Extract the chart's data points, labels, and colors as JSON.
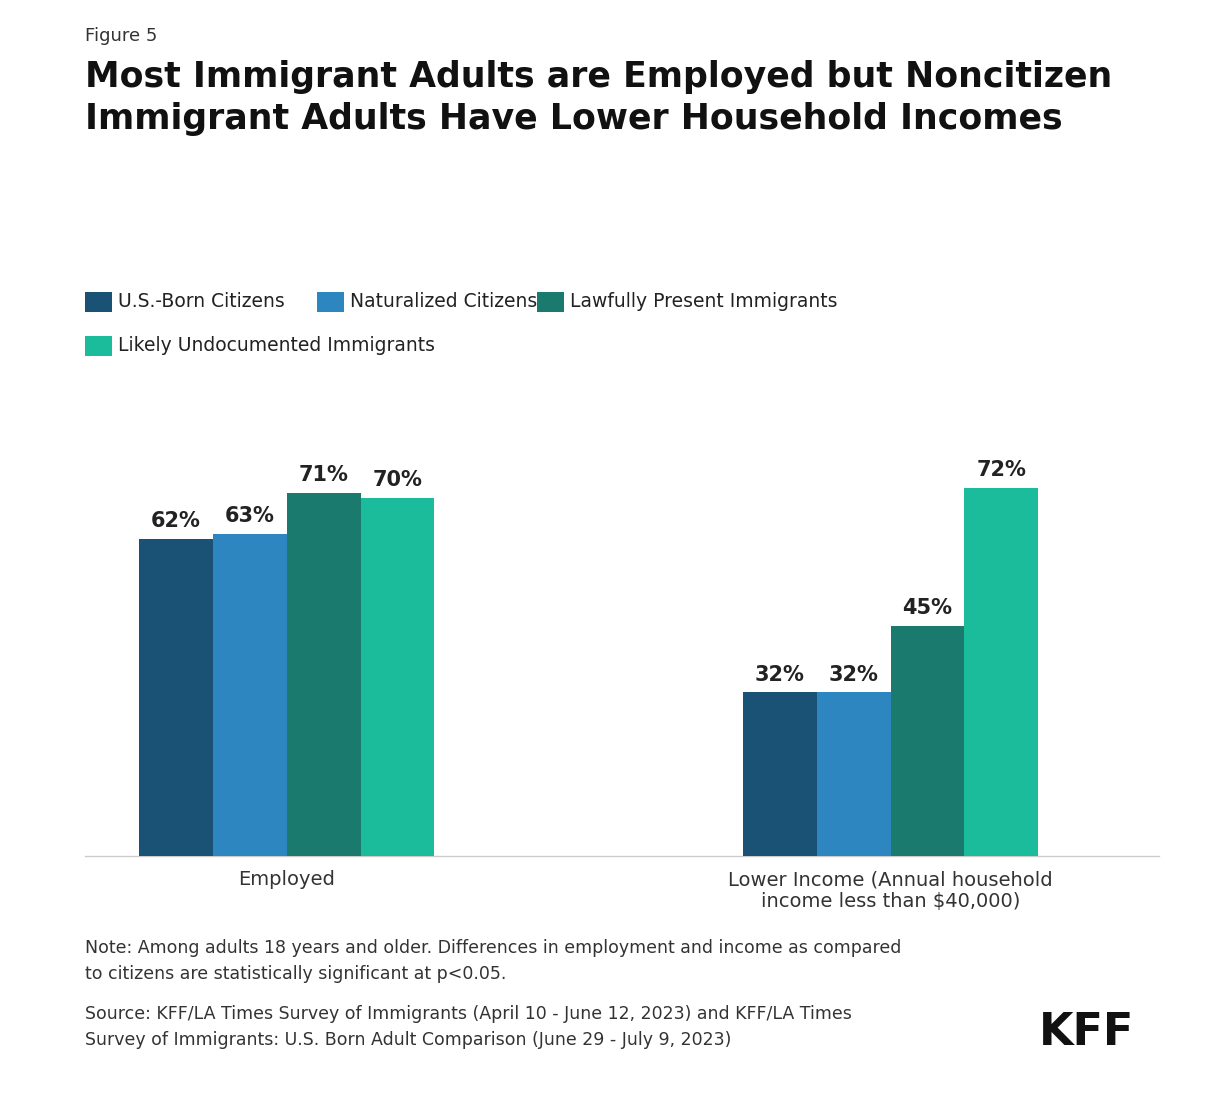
{
  "figure_label": "Figure 5",
  "title": "Most Immigrant Adults are Employed but Noncitizen\nImmigrant Adults Have Lower Household Incomes",
  "categories": [
    "Employed",
    "Lower Income (Annual household\nincome less than $40,000)"
  ],
  "groups": [
    "U.S.-Born Citizens",
    "Naturalized Citizens",
    "Lawfully Present Immigrants",
    "Likely Undocumented Immigrants"
  ],
  "colors": [
    "#1a5276",
    "#2e86c1",
    "#1a7a6e",
    "#1abc9c"
  ],
  "values": {
    "Employed": [
      62,
      63,
      71,
      70
    ],
    "Lower Income": [
      32,
      32,
      45,
      72
    ]
  },
  "note_text": "Note: Among adults 18 years and older. Differences in employment and income as compared\nto citizens are statistically significant at p<0.05.",
  "source_text": "Source: KFF/LA Times Survey of Immigrants (April 10 - June 12, 2023) and KFF/LA Times\nSurvey of Immigrants: U.S. Born Adult Comparison (June 29 - July 9, 2023)",
  "background_color": "#ffffff",
  "bar_width": 0.55,
  "value_labels": {
    "Employed": [
      "62%",
      "63%",
      "71%",
      "70%"
    ],
    "Lower Income": [
      "32%",
      "32%",
      "45%",
      "72%"
    ]
  }
}
